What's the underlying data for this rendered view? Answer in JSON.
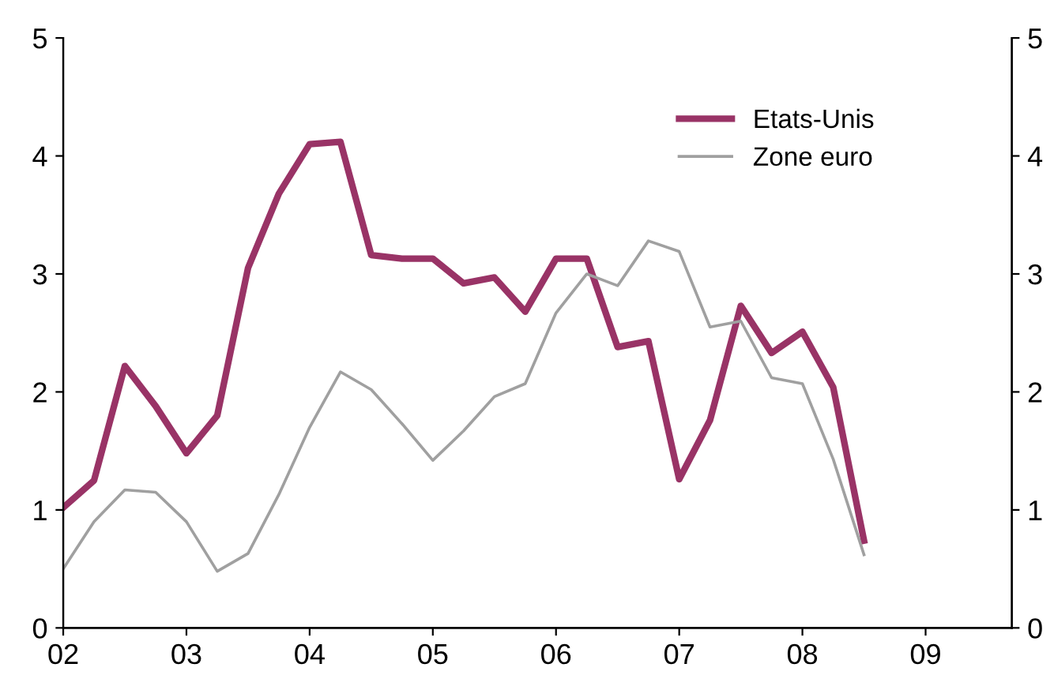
{
  "chart_data": {
    "type": "line",
    "x": [
      2.0,
      2.25,
      2.5,
      2.75,
      3.0,
      3.25,
      3.5,
      3.75,
      4.0,
      4.25,
      4.5,
      4.75,
      5.0,
      5.25,
      5.5,
      5.75,
      6.0,
      6.25,
      6.5,
      6.75,
      7.0,
      7.25,
      7.5,
      7.75,
      8.0,
      8.25,
      8.5
    ],
    "series": [
      {
        "name": "Etats-Unis",
        "color": "#993366",
        "values": [
          1.02,
          1.25,
          2.22,
          1.88,
          1.48,
          1.8,
          3.05,
          3.68,
          4.1,
          4.12,
          3.16,
          3.13,
          3.13,
          2.92,
          2.97,
          2.68,
          3.13,
          3.13,
          2.38,
          2.43,
          1.26,
          1.76,
          2.73,
          2.33,
          2.51,
          2.04,
          0.74
        ]
      },
      {
        "name": "Zone euro",
        "color": "#a0a0a0",
        "values": [
          0.5,
          0.9,
          1.17,
          1.15,
          0.9,
          0.48,
          0.63,
          1.13,
          1.7,
          2.17,
          2.02,
          1.73,
          1.42,
          1.67,
          1.96,
          2.07,
          2.67,
          3.0,
          2.9,
          3.28,
          3.19,
          2.55,
          2.6,
          2.12,
          2.07,
          1.43,
          0.62
        ]
      }
    ],
    "xlim": [
      2,
      9.7
    ],
    "xticks": [
      {
        "value": 2,
        "label": "02"
      },
      {
        "value": 3,
        "label": "03"
      },
      {
        "value": 4,
        "label": "04"
      },
      {
        "value": 5,
        "label": "05"
      },
      {
        "value": 6,
        "label": "06"
      },
      {
        "value": 7,
        "label": "07"
      },
      {
        "value": 8,
        "label": "08"
      },
      {
        "value": 9,
        "label": "09"
      }
    ],
    "ylim": [
      0,
      5
    ],
    "yticks": [
      0,
      1,
      2,
      3,
      4,
      5
    ],
    "y2lim": [
      0,
      5
    ],
    "y2ticks": [
      0,
      1,
      2,
      3,
      4,
      5
    ],
    "legend": "top right",
    "grid": false
  }
}
